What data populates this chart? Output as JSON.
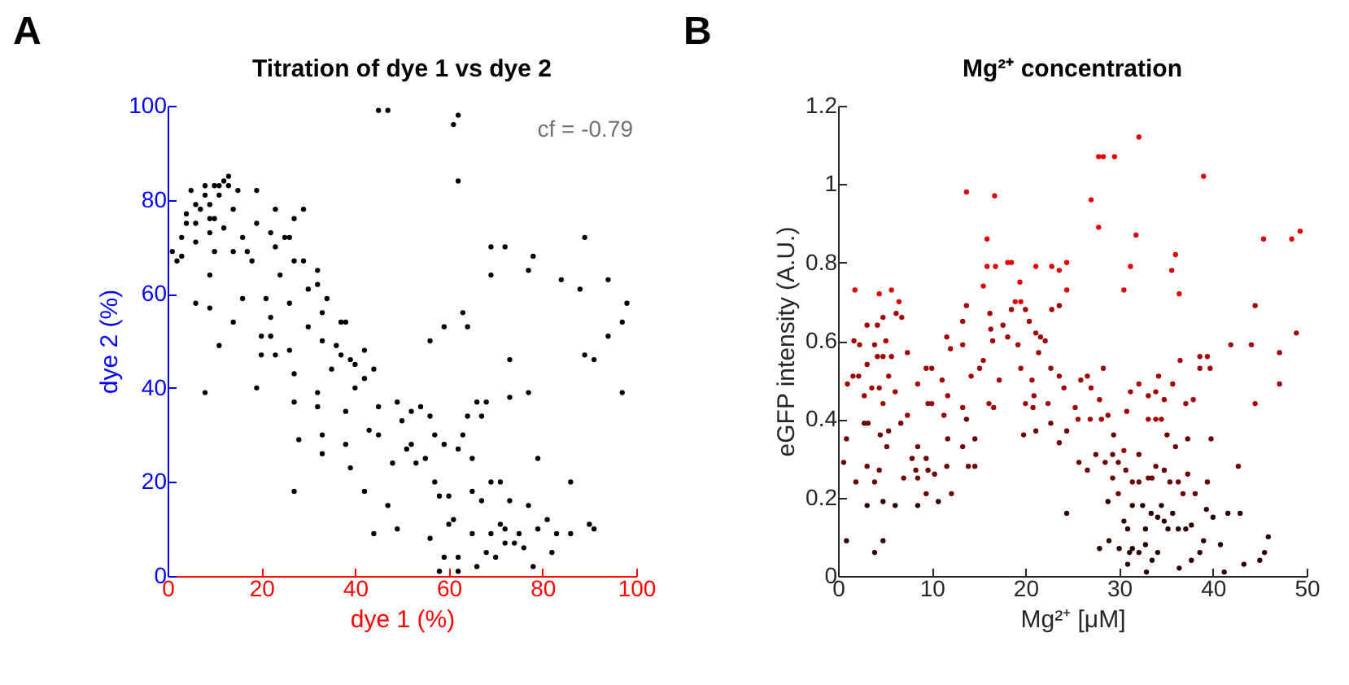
{
  "chart_data": [
    {
      "type": "scatter",
      "title": "Titration of dye 1 vs dye 2",
      "xlabel": "dye 1 (%)",
      "ylabel": "dye 2 (%)",
      "annotations": [
        "A",
        "cf = -0.79"
      ],
      "xlim": [
        0,
        100
      ],
      "ylim": [
        0,
        100
      ],
      "xticks": [
        0,
        20,
        40,
        60,
        80,
        100
      ],
      "yticks": [
        0,
        20,
        40,
        60,
        80,
        100
      ],
      "grid": false,
      "marker": "circle",
      "series": [
        {
          "color": "#000000",
          "x": [
            1,
            2,
            3,
            3,
            4,
            4,
            5,
            6,
            6,
            6,
            7,
            8,
            8,
            9,
            9,
            9,
            10,
            10,
            11,
            11,
            12,
            13,
            13,
            10,
            9,
            6,
            9,
            8,
            11,
            14,
            15,
            14,
            12,
            14,
            16,
            16,
            17,
            18,
            19,
            19,
            19,
            20,
            20,
            21,
            22,
            22,
            22,
            23,
            23,
            23,
            24,
            25,
            26,
            27,
            27,
            29,
            29,
            26,
            26,
            27,
            27,
            28,
            27,
            30,
            30,
            32,
            32,
            33,
            33,
            32,
            32,
            33,
            33,
            34,
            35,
            36,
            37,
            37,
            38,
            38,
            39,
            40,
            40,
            38,
            39,
            42,
            42,
            42,
            43,
            44,
            45,
            44,
            45,
            47,
            48,
            49,
            49,
            50,
            51,
            52,
            52,
            53,
            54,
            55,
            56,
            56,
            57,
            57,
            58,
            59,
            59,
            60,
            56,
            58,
            59,
            60,
            61,
            62,
            62,
            62,
            63,
            64,
            63,
            64,
            65,
            65,
            65,
            66,
            66,
            67,
            67,
            68,
            68,
            69,
            69,
            69,
            69,
            70,
            71,
            71,
            72,
            72,
            72,
            73,
            73,
            73,
            74,
            75,
            76,
            77,
            77,
            78,
            77,
            78,
            79,
            79,
            81,
            82,
            83,
            84,
            86,
            86,
            88,
            89,
            89,
            90,
            91,
            91,
            94,
            94,
            97,
            97,
            98,
            45,
            47,
            61,
            62,
            62
          ],
          "values": [
            69,
            67,
            68,
            72,
            75,
            77,
            82,
            79,
            75,
            71,
            78,
            83,
            81,
            76,
            73,
            79,
            83,
            76,
            83,
            81,
            84,
            85,
            83,
            69,
            64,
            58,
            57,
            39,
            49,
            54,
            82,
            78,
            74,
            69,
            59,
            72,
            69,
            67,
            82,
            75,
            40,
            51,
            47,
            59,
            73,
            55,
            51,
            47,
            78,
            70,
            64,
            72,
            72,
            76,
            67,
            78,
            67,
            58,
            48,
            43,
            37,
            29,
            18,
            61,
            53,
            65,
            62,
            56,
            50,
            39,
            36,
            30,
            26,
            59,
            44,
            49,
            54,
            47,
            54,
            35,
            46,
            40,
            45,
            28,
            23,
            48,
            42,
            18,
            31,
            44,
            36,
            9,
            30,
            15,
            24,
            37,
            10,
            33,
            27,
            28,
            35,
            24,
            36,
            25,
            34,
            50,
            20,
            30,
            17,
            28,
            53,
            11,
            8,
            1,
            4,
            17,
            12,
            4,
            1,
            27,
            56,
            53,
            30,
            34,
            25,
            18,
            9,
            37,
            2,
            16,
            34,
            37,
            5,
            20,
            64,
            70,
            9,
            4,
            20,
            11,
            7,
            70,
            10,
            46,
            38,
            16,
            7,
            9,
            6,
            65,
            39,
            68,
            15,
            2,
            25,
            10,
            12,
            5,
            9,
            63,
            20,
            9,
            61,
            47,
            72,
            11,
            46,
            10,
            63,
            51,
            54,
            39,
            58,
            99,
            99,
            96,
            98,
            84
          ]
        }
      ]
    },
    {
      "type": "scatter",
      "title": "Mg²⁺ concentration",
      "xlabel": "Mg²⁺ [μM]",
      "ylabel": "eGFP intensity (A.U.)",
      "annotations": [
        "B"
      ],
      "xlim": [
        0,
        50
      ],
      "ylim": [
        0,
        1.2
      ],
      "xticks": [
        0,
        10,
        20,
        30,
        40,
        50
      ],
      "yticks": [
        0,
        0.2,
        0.4,
        0.6,
        0.8,
        1,
        1.2
      ],
      "grid": false,
      "marker": "circle",
      "series": [
        {
          "color": "#e00000",
          "x": [
            13.7,
            16.7,
            15.9,
            27.0,
            27.8,
            28.3,
            29.5,
            32.1,
            27.8,
            31.8,
            31.2,
            36.0,
            35.6,
            36.4,
            39.0,
            30.5,
            45.4,
            48.4,
            49.3,
            18.1,
            18.5,
            16.8,
            15.9,
            21.1,
            22.8,
            24.4,
            23.6,
            19.4,
            15.5,
            1.8,
            4.4,
            5.7,
            6.5,
            24.4,
            18.9,
            19.5
          ],
          "values": [
            0.98,
            0.97,
            0.86,
            0.96,
            1.07,
            1.07,
            1.07,
            1.12,
            0.89,
            0.87,
            0.79,
            0.82,
            0.78,
            0.72,
            1.02,
            0.73,
            0.86,
            0.86,
            0.88,
            0.8,
            0.8,
            0.79,
            0.79,
            0.79,
            0.79,
            0.8,
            0.78,
            0.75,
            0.74,
            0.73,
            0.72,
            0.73,
            0.7,
            0.73,
            0.7,
            0.7
          ]
        },
        {
          "color": "#a00000",
          "x": [
            44.5,
            48.9,
            41.9,
            44.1,
            47.1,
            47.1,
            44.5,
            1.7,
            2.3,
            3.1,
            4.2,
            4.8,
            5.1,
            3.9,
            3.1,
            2.2,
            1.6,
            1.0,
            2.8,
            3.6,
            4.2,
            4.8,
            5.4,
            5.7,
            6.1,
            7.4,
            6.2,
            6.8,
            4.4,
            4.8,
            7.4,
            8.5,
            9.4,
            10.0,
            9.6,
            10.0,
            11.1,
            11.6,
            11.7,
            12.0,
            11.3,
            13.3,
            13.3,
            13.7,
            13.3,
            14.2,
            15.1,
            15.5,
            16.2,
            16.3,
            16.5,
            17.2,
            16.1,
            16.6,
            17.6,
            18.1,
            18.5,
            20.0,
            19.2,
            19.5,
            20.4,
            21.1,
            21.6,
            22.1,
            21.4,
            20.7,
            20.9,
            20.0,
            20.8,
            22.4,
            22.7,
            23.6,
            24.1,
            23.6,
            22.8,
            25.3,
            25.9,
            26.6,
            27.0,
            25.6,
            26.9,
            28.1,
            28.3,
            27.9,
            28.8,
            30.5,
            30.8,
            31.2,
            32.1,
            33.1,
            33.9,
            34.2,
            34.8,
            35.7,
            36.5,
            37.1,
            37.9,
            38.6,
            39.4,
            33.1,
            33.9,
            34.5,
            38.6,
            39.7
          ],
          "values": [
            0.69,
            0.62,
            0.59,
            0.59,
            0.57,
            0.49,
            0.44,
            0.6,
            0.59,
            0.64,
            0.64,
            0.66,
            0.6,
            0.59,
            0.54,
            0.51,
            0.51,
            0.49,
            0.46,
            0.48,
            0.56,
            0.56,
            0.51,
            0.56,
            0.47,
            0.57,
            0.67,
            0.66,
            0.48,
            0.44,
            0.41,
            0.49,
            0.53,
            0.53,
            0.44,
            0.44,
            0.5,
            0.61,
            0.46,
            0.58,
            0.41,
            0.43,
            0.65,
            0.69,
            0.59,
            0.51,
            0.53,
            0.55,
            0.67,
            0.63,
            0.6,
            0.5,
            0.44,
            0.43,
            0.64,
            0.61,
            0.68,
            0.68,
            0.59,
            0.53,
            0.65,
            0.62,
            0.61,
            0.6,
            0.57,
            0.5,
            0.46,
            0.44,
            0.43,
            0.44,
            0.53,
            0.51,
            0.48,
            0.69,
            0.68,
            0.43,
            0.5,
            0.51,
            0.48,
            0.4,
            0.4,
            0.4,
            0.53,
            0.45,
            0.41,
            0.32,
            0.42,
            0.47,
            0.49,
            0.46,
            0.47,
            0.51,
            0.45,
            0.49,
            0.55,
            0.44,
            0.45,
            0.56,
            0.56,
            0.4,
            0.4,
            0.4,
            0.53,
            0.53
          ]
        },
        {
          "color": "#6a0000",
          "x": [
            2.8,
            3.2,
            4.5,
            5.4,
            6.7,
            0.9,
            0.6,
            3.1,
            1.9,
            3.9,
            4.4,
            5.2,
            7.0,
            8.5,
            7.9,
            8.3,
            8.5,
            9.4,
            9.6,
            10.3,
            9.4,
            11.6,
            11.7,
            12.1,
            13.7,
            13.9,
            14.6,
            14.6,
            13.3,
            42.7,
            19.8,
            21.1,
            22.7,
            23.6,
            24.4,
            25.7,
            26.6,
            27.5,
            28.5,
            29.4,
            29.3,
            29.9,
            32.1,
            35.1,
            36.0,
            37.3,
            39.8,
            29.3,
            30.7,
            31.4,
            32.1,
            33.1,
            33.5,
            33.9,
            34.8,
            35.4,
            36.3,
            36.8,
            37.3,
            38.1,
            39.4,
            29.9
          ],
          "values": [
            0.39,
            0.39,
            0.36,
            0.37,
            0.39,
            0.35,
            0.29,
            0.28,
            0.24,
            0.24,
            0.27,
            0.33,
            0.25,
            0.33,
            0.3,
            0.27,
            0.25,
            0.3,
            0.27,
            0.26,
            0.21,
            0.28,
            0.35,
            0.21,
            0.4,
            0.28,
            0.28,
            0.35,
            0.33,
            0.28,
            0.36,
            0.37,
            0.39,
            0.34,
            0.37,
            0.29,
            0.27,
            0.31,
            0.29,
            0.36,
            0.31,
            0.29,
            0.31,
            0.36,
            0.33,
            0.35,
            0.35,
            0.25,
            0.27,
            0.24,
            0.24,
            0.25,
            0.25,
            0.28,
            0.27,
            0.24,
            0.24,
            0.21,
            0.26,
            0.21,
            0.24,
            0.21
          ]
        },
        {
          "color": "#2a0000",
          "x": [
            3.1,
            4.8,
            6.1,
            0.9,
            4.8,
            3.9,
            8.5,
            10.7,
            24.4,
            28.8,
            30.5,
            30.9,
            31.4,
            32.5,
            32.8,
            33.4,
            34.1,
            34.5,
            34.8,
            35.2,
            35.7,
            36.3,
            37.1,
            37.7,
            38.6,
            39.0,
            27.9,
            28.9,
            30.0,
            31.1,
            31.4,
            32.1,
            32.8,
            33.5,
            34.1,
            30.9,
            32.9,
            36.4,
            37.7,
            40.8,
            41.2,
            41.6,
            42.9,
            43.3,
            45.0,
            45.5,
            45.9,
            40.0,
            39.3
          ],
          "values": [
            0.18,
            0.19,
            0.18,
            0.09,
            0.09,
            0.06,
            0.18,
            0.19,
            0.16,
            0.19,
            0.14,
            0.12,
            0.18,
            0.18,
            0.12,
            0.16,
            0.15,
            0.18,
            0.14,
            0.12,
            0.16,
            0.12,
            0.12,
            0.13,
            0.06,
            0.09,
            0.07,
            0.09,
            0.07,
            0.06,
            0.07,
            0.06,
            0.08,
            0.04,
            0.06,
            0.03,
            0.01,
            0.02,
            0.04,
            0.08,
            0.01,
            0.16,
            0.16,
            0.03,
            0.04,
            0.06,
            0.1,
            0.15,
            0.17
          ]
        }
      ]
    }
  ]
}
